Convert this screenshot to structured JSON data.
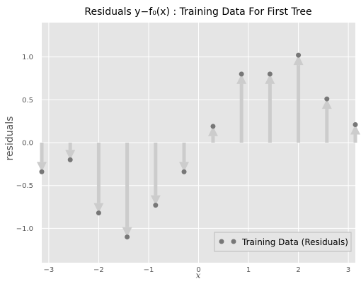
{
  "chart_data": {
    "type": "scatter",
    "title": "Residuals y−f₀(x) : Training Data For First Tree",
    "xlabel": "x",
    "ylabel": "residuals",
    "xlim": [
      -3.14,
      3.14
    ],
    "ylim": [
      -1.4,
      1.4
    ],
    "xticks": [
      -3,
      -2,
      -1,
      0,
      1,
      2,
      3
    ],
    "yticks": [
      -1.0,
      -0.5,
      0.0,
      0.5,
      1.0
    ],
    "ytick_labels": [
      "−1.0",
      "−0.5",
      "0.0",
      "0.5",
      "1.0"
    ],
    "xtick_labels": [
      "−3",
      "−2",
      "−1",
      "0",
      "1",
      "2",
      "3"
    ],
    "grid": true,
    "legend": {
      "position": "bottom-right",
      "entries": [
        "Training Data (Residuals)"
      ]
    },
    "series": [
      {
        "name": "Training Data (Residuals)",
        "marker_color": "#777777",
        "x": [
          -3.14,
          -2.57,
          -2.0,
          -1.43,
          -0.86,
          -0.29,
          0.29,
          0.86,
          1.43,
          2.0,
          2.57,
          3.14
        ],
        "y": [
          -0.34,
          -0.2,
          -0.82,
          -1.1,
          -0.73,
          -0.34,
          0.19,
          0.8,
          0.8,
          1.02,
          0.51,
          0.21
        ]
      }
    ],
    "arrows": {
      "description": "residual arrows from y=0 to each point",
      "color": "#cccccc"
    }
  }
}
